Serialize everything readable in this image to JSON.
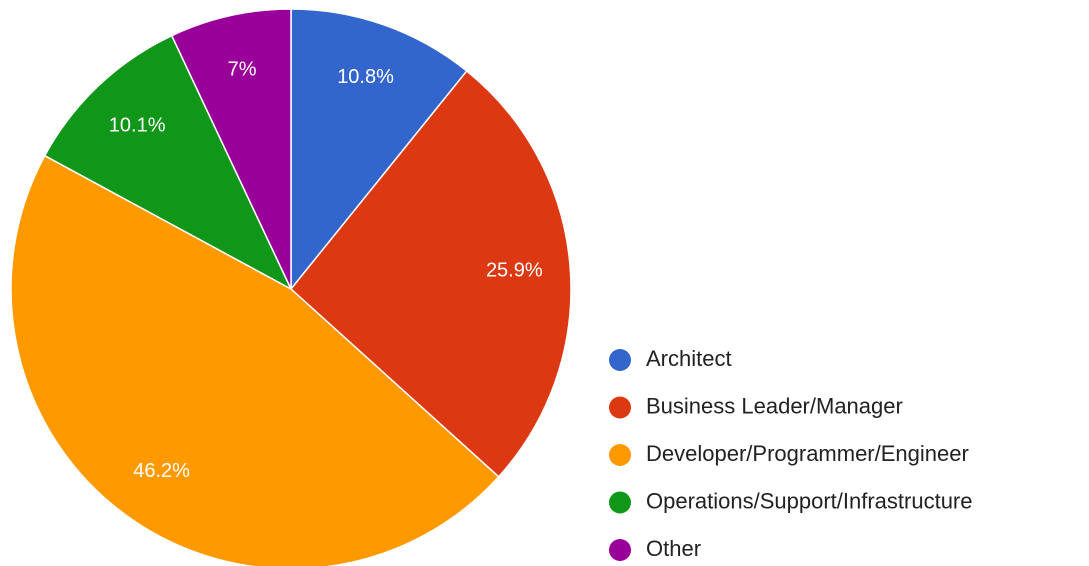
{
  "chart_data": {
    "type": "pie",
    "categories": [
      "Architect",
      "Business Leader/Manager",
      "Developer/Programmer/Engineer",
      "Operations/Support/Infrastructure",
      "Other"
    ],
    "values": [
      10.8,
      25.9,
      46.2,
      10.1,
      7
    ],
    "value_labels": [
      "10.8%",
      "25.9%",
      "46.2%",
      "10.1%",
      "7%"
    ],
    "colors": [
      "#3366cc",
      "#dc3912",
      "#ff9900",
      "#109618",
      "#990099"
    ],
    "legend": "right"
  }
}
